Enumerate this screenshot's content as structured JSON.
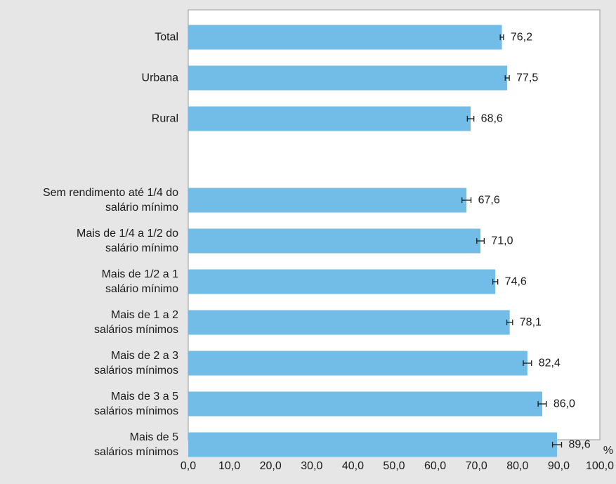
{
  "chart_data": {
    "type": "bar",
    "orientation": "horizontal",
    "categories": [
      "Total",
      "Urbana",
      "Rural",
      "",
      "Sem rendimento até 1/4 do\nsalário mínimo",
      "Mais de 1/4 a 1/2 do\nsalário mínimo",
      "Mais de 1/2 a 1\nsalário mínimo",
      "Mais de 1 a 2\nsalários mínimos",
      "Mais de 2 a 3\nsalários mínimos",
      "Mais de 3 a 5\nsalários mínimos",
      "Mais de 5\nsalários mínimos"
    ],
    "series": [
      {
        "values": [
          76.2,
          77.5,
          68.6,
          null,
          67.6,
          71.0,
          74.6,
          78.1,
          82.4,
          86.0,
          89.6
        ],
        "error_lower": [
          75.8,
          77.0,
          67.8,
          null,
          66.5,
          70.1,
          74.0,
          77.4,
          81.4,
          85.0,
          88.5
        ],
        "error_upper": [
          76.6,
          78.0,
          69.4,
          null,
          68.7,
          71.9,
          75.2,
          78.8,
          83.4,
          87.0,
          90.7
        ]
      }
    ],
    "data_labels": [
      "76,2",
      "77,5",
      "68,6",
      "",
      "67,6",
      "71,0",
      "74,6",
      "78,1",
      "82,4",
      "86,0",
      "89,6"
    ],
    "x_ticks": [
      "0,0",
      "10,0",
      "20,0",
      "30,0",
      "40,0",
      "50,0",
      "60,0",
      "70,0",
      "80,0",
      "90,0",
      "100,0"
    ],
    "xlim": [
      0,
      100
    ],
    "unit_label": "%",
    "grid": false,
    "bar_color": "#72bde8",
    "plot_background": "#ffffff",
    "page_background": "#e6e6e7",
    "axis_color": "#999999",
    "text_color": "#1a1a1a"
  }
}
